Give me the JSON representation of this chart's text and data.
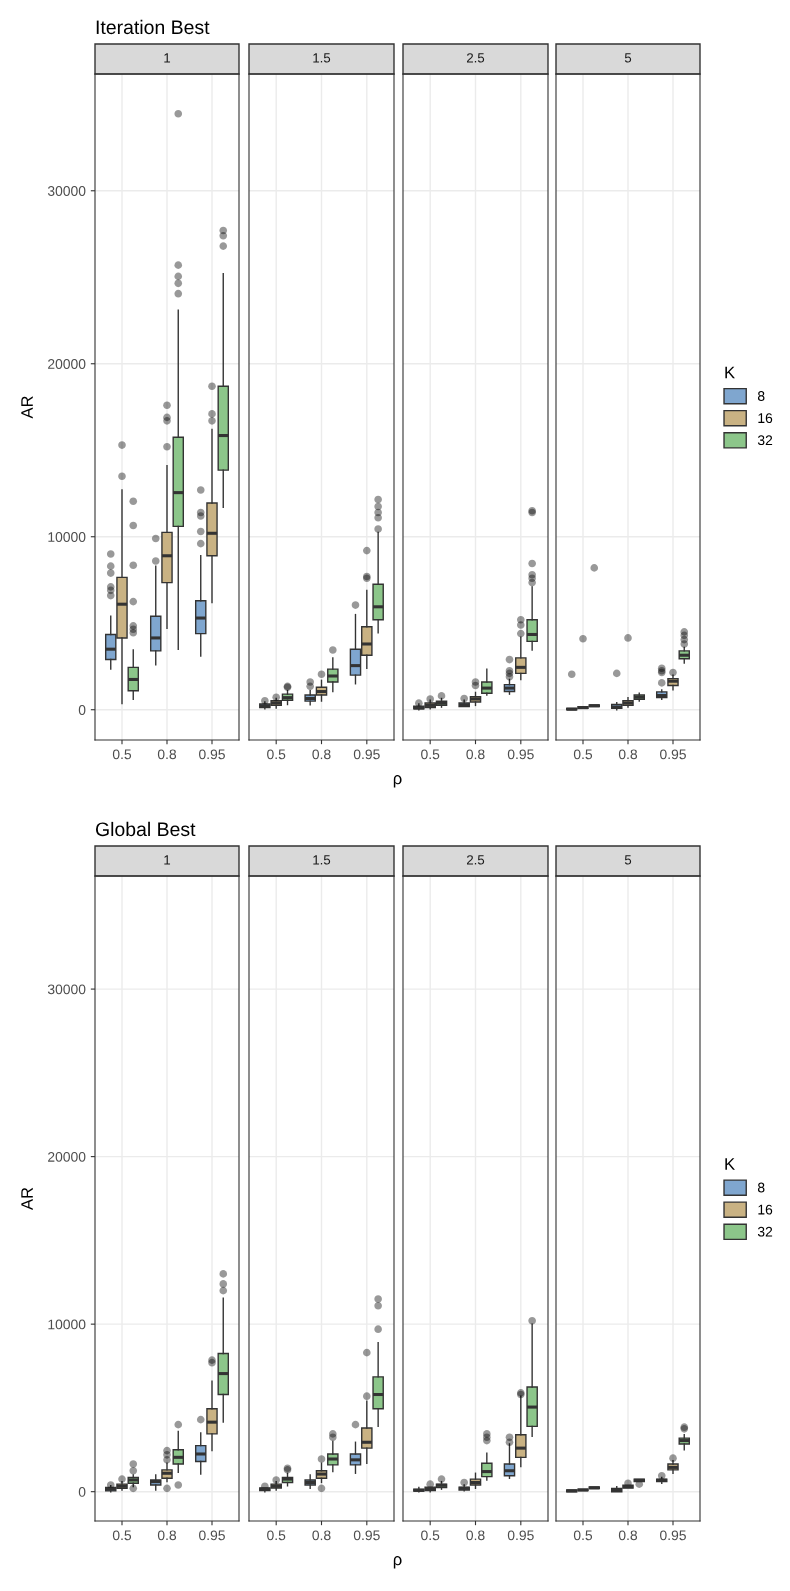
{
  "chart_data": [
    {
      "type": "box",
      "title": "Iteration Best",
      "subtitle": "1",
      "ylabel": "AR",
      "categories": [
        "0.5",
        "0.8",
        "0.95"
      ],
      "ylim": [
        -1750,
        36750
      ],
      "yticks": [
        0,
        10000,
        20000,
        30000
      ],
      "grid": true,
      "series": [
        {
          "color": "#7fa6cf",
          "boxes": [
            {
              "low": 2350,
              "q1": 2900,
              "median": 3500,
              "q3": 4350,
              "high": 5400,
              "outliers": [
                6600,
                6900,
                7100,
                7900,
                8300,
                9000
              ]
            },
            {
              "low": 2600,
              "q1": 3400,
              "median": 4150,
              "q3": 5400,
              "high": 8300,
              "outliers": [
                8600,
                9900
              ]
            },
            {
              "low": 3100,
              "q1": 4400,
              "median": 5300,
              "q3": 6300,
              "high": 8900,
              "outliers": [
                9600,
                10300,
                11200,
                11400,
                12700
              ]
            }
          ]
        },
        {
          "color": "#c9b283",
          "boxes": [
            {
              "low": 350,
              "q1": 4150,
              "median": 6100,
              "q3": 7650,
              "high": 12700,
              "outliers": [
                13500,
                15300
              ]
            },
            {
              "low": 4700,
              "q1": 7350,
              "median": 8900,
              "q3": 10250,
              "high": 14100,
              "outliers": [
                15200,
                16700,
                16900,
                17600
              ]
            },
            {
              "low": 6200,
              "q1": 8900,
              "median": 10200,
              "q3": 11950,
              "high": 16200,
              "outliers": [
                16700,
                17100,
                18700
              ]
            }
          ]
        },
        {
          "color": "#8cc68a",
          "boxes": [
            {
              "low": 600,
              "q1": 1100,
              "median": 1750,
              "q3": 2450,
              "high": 3450,
              "outliers": [
                4450,
                4650,
                4850,
                6250,
                8350,
                10650,
                12050
              ]
            },
            {
              "low": 3500,
              "q1": 10600,
              "median": 12550,
              "q3": 15750,
              "high": 23100,
              "outliers": [
                24050,
                24650,
                25050,
                25700,
                34450
              ]
            },
            {
              "low": 11700,
              "q1": 13850,
              "median": 15850,
              "q3": 18700,
              "high": 25200,
              "outliers": [
                26800,
                27400,
                27700
              ]
            }
          ]
        }
      ]
    },
    {
      "type": "box",
      "subtitle": "1.5",
      "xlabel": "ρ",
      "categories": [
        "0.5",
        "0.8",
        "0.95"
      ],
      "ylim": [
        -1750,
        36750
      ],
      "yticks": [
        0,
        10000,
        20000,
        30000
      ],
      "grid": true,
      "tick_labels": "x",
      "series": [
        {
          "color": "#7fa6cf",
          "boxes": [
            {
              "low": 50,
              "q1": 130,
              "median": 220,
              "q3": 330,
              "high": 450,
              "outliers": [
                520
              ]
            },
            {
              "low": 280,
              "q1": 500,
              "median": 650,
              "q3": 850,
              "high": 1100,
              "outliers": [
                1350,
                1600
              ]
            },
            {
              "low": 1500,
              "q1": 2000,
              "median": 2550,
              "q3": 3500,
              "high": 5500,
              "outliers": [
                6050
              ]
            }
          ]
        },
        {
          "color": "#c9b283",
          "boxes": [
            {
              "low": 100,
              "q1": 260,
              "median": 390,
              "q3": 520,
              "high": 650,
              "outliers": [
                720
              ]
            },
            {
              "low": 500,
              "q1": 850,
              "median": 1050,
              "q3": 1300,
              "high": 1700,
              "outliers": [
                2050
              ]
            },
            {
              "low": 2400,
              "q1": 3150,
              "median": 3800,
              "q3": 4800,
              "high": 6900,
              "outliers": [
                7600,
                7700,
                9200
              ]
            }
          ]
        },
        {
          "color": "#8cc68a",
          "boxes": [
            {
              "low": 300,
              "q1": 550,
              "median": 700,
              "q3": 900,
              "high": 1100,
              "outliers": [
                1300,
                1350
              ]
            },
            {
              "low": 1050,
              "q1": 1600,
              "median": 1950,
              "q3": 2350,
              "high": 3000,
              "outliers": [
                3450
              ]
            },
            {
              "low": 4450,
              "q1": 5200,
              "median": 5950,
              "q3": 7250,
              "high": 10250,
              "outliers": [
                10450,
                11100,
                11400,
                11750,
                12150
              ]
            }
          ]
        }
      ]
    },
    {
      "type": "box",
      "subtitle": "2.5",
      "categories": [
        "0.5",
        "0.8",
        "0.95"
      ],
      "ylim": [
        -1750,
        36750
      ],
      "yticks": [
        0,
        10000,
        20000,
        30000
      ],
      "grid": true,
      "tick_labels": "x",
      "series": [
        {
          "color": "#7fa6cf",
          "boxes": [
            {
              "low": 0,
              "q1": 50,
              "median": 100,
              "q3": 200,
              "high": 330,
              "outliers": [
                380
              ]
            },
            {
              "low": 180,
              "q1": 180,
              "median": 280,
              "q3": 390,
              "high": 550,
              "outliers": [
                650
              ]
            },
            {
              "low": 900,
              "q1": 1050,
              "median": 1250,
              "q3": 1450,
              "high": 1750,
              "outliers": [
                1900,
                2100,
                2250,
                2900
              ]
            }
          ]
        },
        {
          "color": "#c9b283",
          "boxes": [
            {
              "low": 50,
              "q1": 130,
              "median": 250,
              "q3": 390,
              "high": 550,
              "outliers": [
                620
              ]
            },
            {
              "low": 250,
              "q1": 450,
              "median": 620,
              "q3": 750,
              "high": 1000,
              "outliers": [
                1400,
                1600
              ]
            },
            {
              "low": 1750,
              "q1": 2100,
              "median": 2450,
              "q3": 3000,
              "high": 4200,
              "outliers": [
                4400,
                4900,
                5200
              ]
            }
          ]
        },
        {
          "color": "#8cc68a",
          "boxes": [
            {
              "low": 150,
              "q1": 260,
              "median": 380,
              "q3": 490,
              "high": 650,
              "outliers": [
                800
              ]
            },
            {
              "low": 850,
              "q1": 950,
              "median": 1250,
              "q3": 1600,
              "high": 2350
            },
            {
              "low": 3450,
              "q1": 3950,
              "median": 4350,
              "q3": 5200,
              "high": 7100,
              "outliers": [
                7350,
                7600,
                7800,
                8450,
                11400,
                11500
              ]
            }
          ]
        }
      ]
    },
    {
      "type": "box",
      "subtitle": "5",
      "legend": "right",
      "legend_title": "K",
      "categories": [
        "0.5",
        "0.8",
        "0.95"
      ],
      "ylim": [
        -1750,
        36750
      ],
      "yticks": [
        0,
        10000,
        20000,
        30000
      ],
      "grid": true,
      "tick_labels": "x",
      "series": [
        {
          "name": "8",
          "color": "#7fa6cf",
          "boxes": [
            {
              "low": 0,
              "q1": 0,
              "median": 30,
              "q3": 80,
              "high": 80,
              "outliers": [
                2050
              ]
            },
            {
              "low": 0,
              "q1": 80,
              "median": 150,
              "q3": 300,
              "high": 400,
              "outliers": [
                2100
              ]
            },
            {
              "low": 600,
              "q1": 700,
              "median": 820,
              "q3": 1030,
              "high": 1150,
              "outliers": [
                1550,
                2150,
                2250,
                2400
              ]
            }
          ]
        },
        {
          "name": "16",
          "color": "#c9b283",
          "boxes": [
            {
              "low": 80,
              "q1": 80,
              "median": 120,
              "q3": 180,
              "high": 180,
              "outliers": [
                4100
              ]
            },
            {
              "low": 150,
              "q1": 250,
              "median": 380,
              "q3": 520,
              "high": 700,
              "outliers": [
                4150
              ]
            },
            {
              "low": 1150,
              "q1": 1400,
              "median": 1650,
              "q3": 1800,
              "high": 2000,
              "outliers": [
                2150
              ]
            }
          ]
        },
        {
          "name": "32",
          "color": "#8cc68a",
          "boxes": [
            {
              "low": 180,
              "q1": 180,
              "median": 230,
              "q3": 280,
              "high": 280,
              "outliers": [
                8200
              ]
            },
            {
              "low": 500,
              "q1": 600,
              "median": 720,
              "q3": 850,
              "high": 950
            },
            {
              "low": 2700,
              "q1": 2950,
              "median": 3150,
              "q3": 3400,
              "high": 3600,
              "outliers": [
                3800,
                4050,
                4300,
                4500
              ]
            }
          ]
        }
      ]
    },
    {
      "type": "box",
      "title": "Global Best",
      "subtitle": "1",
      "ylabel": "AR",
      "categories": [
        "0.5",
        "0.8",
        "0.95"
      ],
      "ylim": [
        -1750,
        36750
      ],
      "yticks": [
        0,
        10000,
        20000,
        30000
      ],
      "grid": true,
      "series": [
        {
          "color": "#7fa6cf",
          "boxes": [
            {
              "low": 0,
              "q1": 50,
              "median": 150,
              "q3": 250,
              "high": 350,
              "outliers": [
                400
              ]
            },
            {
              "low": 100,
              "q1": 400,
              "median": 600,
              "q3": 700,
              "high": 1000
            },
            {
              "low": 1050,
              "q1": 1800,
              "median": 2250,
              "q3": 2750,
              "high": 3500,
              "outliers": [
                4300
              ]
            }
          ]
        },
        {
          "color": "#c9b283",
          "boxes": [
            {
              "low": 100,
              "q1": 200,
              "median": 320,
              "q3": 450,
              "high": 600,
              "outliers": [
                750
              ]
            },
            {
              "low": 600,
              "q1": 800,
              "median": 1100,
              "q3": 1300,
              "high": 1700,
              "outliers": [
                200,
                1900,
                2200,
                2450
              ]
            },
            {
              "low": 2450,
              "q1": 3450,
              "median": 4150,
              "q3": 4950,
              "high": 6600,
              "outliers": [
                7700,
                7850
              ]
            }
          ]
        },
        {
          "color": "#8cc68a",
          "boxes": [
            {
              "low": 300,
              "q1": 500,
              "median": 700,
              "q3": 850,
              "high": 1000,
              "outliers": [
                200,
                1250,
                1650
              ]
            },
            {
              "low": 1150,
              "q1": 1650,
              "median": 2050,
              "q3": 2500,
              "high": 3600,
              "outliers": [
                400,
                4000
              ]
            },
            {
              "low": 4150,
              "q1": 5800,
              "median": 7050,
              "q3": 8250,
              "high": 11550,
              "outliers": [
                12000,
                12400,
                13000
              ]
            }
          ]
        }
      ]
    },
    {
      "type": "box",
      "subtitle": "1.5",
      "xlabel": "ρ",
      "categories": [
        "0.5",
        "0.8",
        "0.95"
      ],
      "ylim": [
        -1750,
        36750
      ],
      "yticks": [
        0,
        10000,
        20000,
        30000
      ],
      "grid": true,
      "tick_labels": "x",
      "series": [
        {
          "color": "#7fa6cf",
          "boxes": [
            {
              "low": 0,
              "q1": 60,
              "median": 150,
              "q3": 220,
              "high": 220,
              "outliers": [
                320
              ]
            },
            {
              "low": 200,
              "q1": 400,
              "median": 550,
              "q3": 700,
              "high": 1000
            },
            {
              "low": 1100,
              "q1": 1600,
              "median": 1900,
              "q3": 2250,
              "high": 2950,
              "outliers": [
                4000
              ]
            }
          ]
        },
        {
          "color": "#c9b283",
          "boxes": [
            {
              "low": 100,
              "q1": 220,
              "median": 330,
              "q3": 450,
              "high": 600,
              "outliers": [
                700
              ]
            },
            {
              "low": 550,
              "q1": 800,
              "median": 1050,
              "q3": 1250,
              "high": 1700,
              "outliers": [
                200,
                1950
              ]
            },
            {
              "low": 1700,
              "q1": 2600,
              "median": 2950,
              "q3": 3800,
              "high": 5400,
              "outliers": [
                5700,
                8300
              ]
            }
          ]
        },
        {
          "color": "#8cc68a",
          "boxes": [
            {
              "low": 350,
              "q1": 550,
              "median": 750,
              "q3": 850,
              "high": 1100,
              "outliers": [
                1300,
                1400
              ]
            },
            {
              "low": 1200,
              "q1": 1600,
              "median": 1950,
              "q3": 2250,
              "high": 3000,
              "outliers": [
                3250,
                3450
              ]
            },
            {
              "low": 3900,
              "q1": 4950,
              "median": 5800,
              "q3": 6850,
              "high": 8900,
              "outliers": [
                9700,
                11100,
                11500
              ]
            }
          ]
        }
      ]
    },
    {
      "type": "box",
      "subtitle": "2.5",
      "categories": [
        "0.5",
        "0.8",
        "0.95"
      ],
      "ylim": [
        -1750,
        36750
      ],
      "yticks": [
        0,
        10000,
        20000,
        30000
      ],
      "grid": true,
      "tick_labels": "x",
      "series": [
        {
          "color": "#7fa6cf",
          "boxes": [
            {
              "low": 0,
              "q1": 30,
              "median": 80,
              "q3": 150,
              "high": 250
            },
            {
              "low": 50,
              "q1": 100,
              "median": 200,
              "q3": 270,
              "high": 400,
              "outliers": [
                550
              ]
            },
            {
              "low": 800,
              "q1": 950,
              "median": 1250,
              "q3": 1650,
              "high": 2850,
              "outliers": [
                2950,
                3250
              ]
            }
          ]
        },
        {
          "color": "#c9b283",
          "boxes": [
            {
              "low": 0,
              "q1": 60,
              "median": 180,
              "q3": 270,
              "high": 270,
              "outliers": [
                450
              ]
            },
            {
              "low": 200,
              "q1": 400,
              "median": 550,
              "q3": 750,
              "high": 1100
            },
            {
              "low": 1500,
              "q1": 2050,
              "median": 2600,
              "q3": 3400,
              "high": 5700,
              "outliers": [
                5800,
                5900
              ]
            }
          ]
        },
        {
          "color": "#8cc68a",
          "boxes": [
            {
              "low": 150,
              "q1": 250,
              "median": 380,
              "q3": 450,
              "high": 600,
              "outliers": [
                750
              ]
            },
            {
              "low": 700,
              "q1": 900,
              "median": 1200,
              "q3": 1700,
              "high": 2300,
              "outliers": [
                3050,
                3250,
                3450
              ]
            },
            {
              "low": 3300,
              "q1": 3900,
              "median": 5050,
              "q3": 6250,
              "high": 10000,
              "outliers": [
                10200
              ]
            }
          ]
        }
      ]
    },
    {
      "type": "box",
      "subtitle": "5",
      "legend": "right",
      "legend_title": "K",
      "categories": [
        "0.5",
        "0.8",
        "0.95"
      ],
      "ylim": [
        -1750,
        36750
      ],
      "yticks": [
        0,
        10000,
        20000,
        30000
      ],
      "grid": true,
      "tick_labels": "x",
      "series": [
        {
          "name": "8",
          "color": "#7fa6cf",
          "boxes": [
            {
              "low": 0,
              "q1": 0,
              "median": 50,
              "q3": 100,
              "high": 100
            },
            {
              "low": 0,
              "q1": 0,
              "median": 120,
              "q3": 200,
              "high": 300
            },
            {
              "low": 500,
              "q1": 600,
              "median": 680,
              "q3": 750,
              "high": 850,
              "outliers": [
                950
              ]
            }
          ]
        },
        {
          "name": "16",
          "color": "#c9b283",
          "boxes": [
            {
              "low": 60,
              "q1": 60,
              "median": 100,
              "q3": 150,
              "high": 150
            },
            {
              "low": 220,
              "q1": 220,
              "median": 300,
              "q3": 380,
              "high": 380,
              "outliers": [
                500
              ]
            },
            {
              "low": 1100,
              "q1": 1300,
              "median": 1450,
              "q3": 1650,
              "high": 1850,
              "outliers": [
                2000
              ]
            }
          ]
        },
        {
          "name": "32",
          "color": "#8cc68a",
          "boxes": [
            {
              "low": 180,
              "q1": 180,
              "median": 230,
              "q3": 280,
              "high": 280
            },
            {
              "low": 600,
              "q1": 600,
              "median": 680,
              "q3": 750,
              "high": 750,
              "outliers": [
                450
              ]
            },
            {
              "low": 2500,
              "q1": 2850,
              "median": 3050,
              "q3": 3200,
              "high": 3400,
              "outliers": [
                3750,
                3850
              ]
            }
          ]
        }
      ]
    }
  ]
}
